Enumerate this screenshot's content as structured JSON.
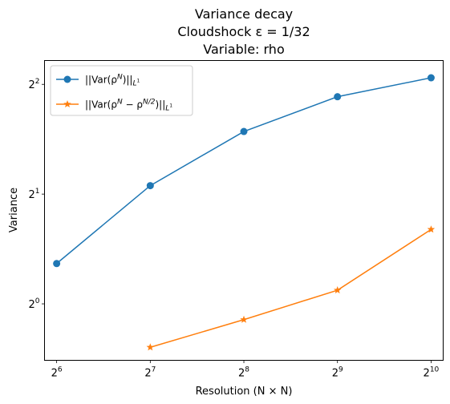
{
  "chart_data": {
    "type": "line",
    "title_lines": [
      "Variance decay",
      "Cloudshock ε = 1/32",
      "Variable: rho"
    ],
    "xlabel": "Resolution (N × N)",
    "ylabel": "Variance",
    "xscale": "log2",
    "yscale": "log2",
    "x_ticks": [
      {
        "base": "2",
        "exp": "6",
        "value": 64
      },
      {
        "base": "2",
        "exp": "7",
        "value": 128
      },
      {
        "base": "2",
        "exp": "8",
        "value": 256
      },
      {
        "base": "2",
        "exp": "9",
        "value": 512
      },
      {
        "base": "2",
        "exp": "10",
        "value": 1024
      }
    ],
    "y_ticks": [
      {
        "base": "2",
        "exp": "0",
        "value": 1
      },
      {
        "base": "2",
        "exp": "1",
        "value": 2
      },
      {
        "base": "2",
        "exp": "2",
        "value": 4
      }
    ],
    "xlim": [
      58.5,
      1120
    ],
    "ylim": [
      0.7,
      4.65
    ],
    "grid": false,
    "legend_position": "top-left",
    "series": [
      {
        "name": "||Var(ρ^N)||_{L^1}",
        "legend_label": {
          "prefix": "||Var(ρ",
          "sup": "N",
          "suffix": ")||",
          "sub": "L",
          "subsup": "1"
        },
        "color": "#1f77b4",
        "marker": "circle",
        "x": [
          64,
          128,
          256,
          512,
          1024
        ],
        "y": [
          1.29,
          2.11,
          2.97,
          3.7,
          4.17
        ]
      },
      {
        "name": "||Var(ρ^N − ρ^{N/2})||_{L^1}",
        "legend_label": {
          "prefix": "||Var(ρ",
          "sup": "N",
          "mid": " − ρ",
          "sup2": "N/2",
          "suffix": ")||",
          "sub": "L",
          "subsup": "1"
        },
        "color": "#ff7f0e",
        "marker": "star",
        "x": [
          128,
          256,
          512,
          1024
        ],
        "y": [
          0.76,
          0.905,
          1.09,
          1.6
        ]
      }
    ]
  }
}
